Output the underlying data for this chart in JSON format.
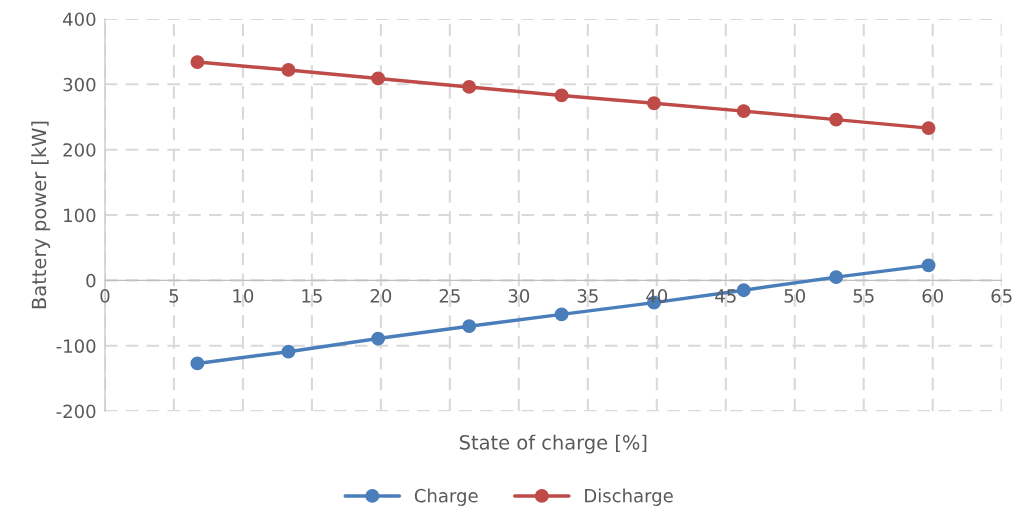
{
  "chart_data": {
    "type": "line",
    "xlabel": "State of charge [%]",
    "ylabel": "Battery power [kW]",
    "xlim": [
      0,
      65
    ],
    "xticks": [
      0,
      5,
      10,
      15,
      20,
      25,
      30,
      35,
      40,
      45,
      50,
      55,
      60,
      65
    ],
    "ylim": [
      -200,
      400
    ],
    "yticks": [
      -200,
      -100,
      0,
      100,
      200,
      300,
      400
    ],
    "grid": true,
    "legend": "bottom",
    "marker": "circle",
    "line_style": "solid",
    "series": [
      {
        "name": "Charge",
        "color": "#4a7ebb",
        "x": [
          6.7,
          13.3,
          19.8,
          26.4,
          33.1,
          39.8,
          46.3,
          53.0,
          59.7
        ],
        "values": [
          -127,
          -109,
          -89,
          -70,
          -52,
          -34,
          -15,
          5,
          23
        ]
      },
      {
        "name": "Discharge",
        "color": "#be4b48",
        "x": [
          6.7,
          13.3,
          19.8,
          26.4,
          33.1,
          39.8,
          46.3,
          53.0,
          59.7
        ],
        "values": [
          334,
          322,
          309,
          296,
          283,
          271,
          259,
          246,
          233
        ]
      }
    ]
  }
}
